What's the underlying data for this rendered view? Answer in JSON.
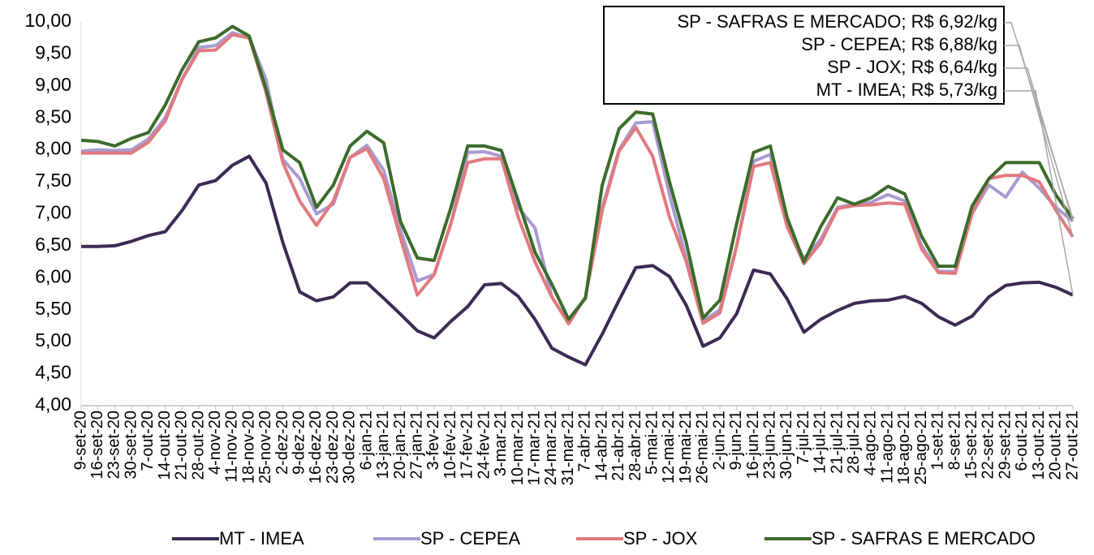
{
  "chart_data": {
    "type": "line",
    "categories": [
      "9-set-20",
      "16-set-20",
      "23-set-20",
      "30-set-20",
      "7-out-20",
      "14-out-20",
      "21-out-20",
      "28-out-20",
      "4-nov-20",
      "11-nov-20",
      "18-nov-20",
      "25-nov-20",
      "2-dez-20",
      "9-dez-20",
      "16-dez-20",
      "23-dez-20",
      "30-dez-20",
      "6-jan-21",
      "13-jan-21",
      "20-jan-21",
      "27-jan-21",
      "3-fev-21",
      "10-fev-21",
      "17-fev-21",
      "24-fev-21",
      "3-mar-21",
      "10-mar-21",
      "17-mar-21",
      "24-mar-21",
      "31-mar-21",
      "7-abr-21",
      "14-abr-21",
      "21-abr-21",
      "28-abr-21",
      "5-mai-21",
      "12-mai-21",
      "19-mai-21",
      "26-mai-21",
      "2-jun-21",
      "9-jun-21",
      "16-jun-21",
      "23-jun-21",
      "30-jun-21",
      "7-jul-21",
      "14-jul-21",
      "21-jul-21",
      "28-jul-21",
      "4-ago-21",
      "11-ago-21",
      "18-ago-21",
      "25-ago-21",
      "1-set-21",
      "8-set-21",
      "15-set-21",
      "22-set-21",
      "29-set-21",
      "6-out-21",
      "13-out-21",
      "20-out-21",
      "27-out-21"
    ],
    "series": [
      {
        "name": "MT - IMEA",
        "color": "#3b2a52",
        "values": [
          6.49,
          6.49,
          6.5,
          6.57,
          6.66,
          6.72,
          7.05,
          7.45,
          7.52,
          7.76,
          7.9,
          7.48,
          6.55,
          5.78,
          5.64,
          5.7,
          5.92,
          5.92,
          5.68,
          5.43,
          5.17,
          5.06,
          5.32,
          5.55,
          5.89,
          5.91,
          5.71,
          5.35,
          4.9,
          4.76,
          4.64,
          5.12,
          5.65,
          6.16,
          6.19,
          6.02,
          5.57,
          4.93,
          5.06,
          5.44,
          6.12,
          6.06,
          5.67,
          5.15,
          5.35,
          5.49,
          5.6,
          5.64,
          5.65,
          5.71,
          5.6,
          5.39,
          5.26,
          5.4,
          5.7,
          5.88,
          5.92,
          5.93,
          5.85,
          5.73
        ]
      },
      {
        "name": "SP - CEPEA",
        "color": "#a99bd0",
        "values": [
          7.98,
          8.0,
          7.99,
          8.0,
          8.17,
          8.5,
          9.1,
          9.6,
          9.63,
          9.83,
          9.75,
          9.1,
          7.85,
          7.55,
          7.0,
          7.15,
          7.88,
          8.07,
          7.68,
          6.75,
          5.95,
          6.05,
          6.85,
          7.96,
          7.97,
          7.9,
          7.1,
          6.78,
          5.7,
          5.3,
          5.7,
          7.1,
          8.0,
          8.42,
          8.44,
          7.3,
          6.3,
          5.32,
          5.5,
          6.5,
          7.82,
          7.93,
          6.8,
          6.3,
          6.6,
          7.1,
          7.15,
          7.18,
          7.3,
          7.2,
          6.5,
          6.1,
          6.1,
          7.0,
          7.45,
          7.26,
          7.65,
          7.4,
          7.1,
          6.88
        ]
      },
      {
        "name": "SP - JOX",
        "color": "#e07a7f",
        "values": [
          7.95,
          7.95,
          7.95,
          7.95,
          8.12,
          8.45,
          9.1,
          9.55,
          9.56,
          9.8,
          9.75,
          8.9,
          7.8,
          7.2,
          6.82,
          7.2,
          7.88,
          8.02,
          7.55,
          6.62,
          5.73,
          6.05,
          6.85,
          7.8,
          7.86,
          7.86,
          6.95,
          6.25,
          5.7,
          5.28,
          5.7,
          7.05,
          7.98,
          8.35,
          7.9,
          6.95,
          6.25,
          5.29,
          5.45,
          6.5,
          7.74,
          7.8,
          6.8,
          6.22,
          6.55,
          7.08,
          7.13,
          7.14,
          7.17,
          7.15,
          6.45,
          6.08,
          6.07,
          7.0,
          7.55,
          7.6,
          7.6,
          7.5,
          7.05,
          6.64
        ]
      },
      {
        "name": "SP - SAFRAS E MERCADO",
        "color": "#3c6b2a",
        "values": [
          8.15,
          8.13,
          8.06,
          8.18,
          8.27,
          8.7,
          9.25,
          9.69,
          9.75,
          9.93,
          9.78,
          8.95,
          8.0,
          7.8,
          7.1,
          7.45,
          8.06,
          8.29,
          8.11,
          6.88,
          6.31,
          6.27,
          7.1,
          8.06,
          8.06,
          7.99,
          7.2,
          6.4,
          5.9,
          5.35,
          5.68,
          7.45,
          8.33,
          8.59,
          8.56,
          7.5,
          6.55,
          5.37,
          5.65,
          6.85,
          7.96,
          8.06,
          6.94,
          6.25,
          6.8,
          7.25,
          7.15,
          7.25,
          7.43,
          7.31,
          6.65,
          6.18,
          6.18,
          7.12,
          7.55,
          7.8,
          7.8,
          7.8,
          7.29,
          6.92
        ]
      }
    ],
    "annotations": [
      "SP - SAFRAS E MERCADO; R$ 6,92/kg",
      "SP - CEPEA; R$ 6,88/kg",
      "SP - JOX; R$ 6,64/kg",
      "MT - IMEA; R$ 5,73/kg"
    ],
    "ylim": [
      4,
      10
    ],
    "yticks": [
      {
        "value": 4,
        "label": "4,00"
      },
      {
        "value": 4.5,
        "label": "4,50"
      },
      {
        "value": 5,
        "label": "5,00"
      },
      {
        "value": 5.5,
        "label": "5,50"
      },
      {
        "value": 6,
        "label": "6,00"
      },
      {
        "value": 6.5,
        "label": "6,50"
      },
      {
        "value": 7,
        "label": "7,00"
      },
      {
        "value": 7.5,
        "label": "7,50"
      },
      {
        "value": 8,
        "label": "8,00"
      },
      {
        "value": 8.5,
        "label": "8,50"
      },
      {
        "value": 9,
        "label": "9,00"
      },
      {
        "value": 9.5,
        "label": "9,50"
      },
      {
        "value": 10,
        "label": "10,00"
      }
    ],
    "grid": false,
    "legend": "bottom"
  }
}
